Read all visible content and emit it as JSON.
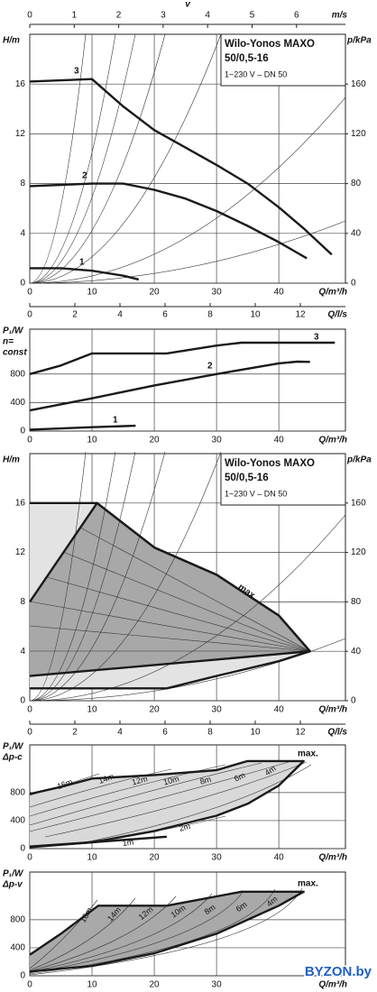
{
  "chart_data": [
    {
      "type": "line",
      "title": [
        "Wilo-Yonos MAXO",
        "50/0,5-16"
      ],
      "subtitle": "1~230 V – DN 50",
      "xlabel": "Q/m³/h",
      "ylabel": [
        "H/m"
      ],
      "y2label": "p/kPa",
      "x2label": "v",
      "x2unit": "m/s",
      "x3label": "Q/l/s",
      "xlim": [
        0,
        50.7
      ],
      "xticks": [
        0,
        10,
        20,
        30,
        40
      ],
      "ylim": [
        0,
        20
      ],
      "yticks": [
        0,
        4,
        8,
        12,
        16
      ],
      "y2lim": [
        0,
        200
      ],
      "y2ticks": [
        0,
        40,
        80,
        120,
        160
      ],
      "x2lim": [
        0,
        7.1
      ],
      "x2ticks": [
        0,
        1,
        2,
        3,
        4,
        5,
        6
      ],
      "x3lim": [
        0,
        14
      ],
      "x3ticks": [
        0,
        2,
        4,
        6,
        8,
        10,
        12
      ],
      "grid": true,
      "series": [
        {
          "name": "1",
          "color": "#1a1a1a",
          "x": [
            0,
            5,
            10,
            15,
            17.5
          ],
          "values": [
            1.2,
            1.2,
            1.0,
            0.6,
            0.3
          ]
        },
        {
          "name": "2",
          "color": "#1a1a1a",
          "x": [
            0,
            5,
            10,
            15,
            20,
            25,
            30,
            35,
            40,
            44.5
          ],
          "values": [
            7.8,
            7.9,
            8.0,
            8.0,
            7.5,
            6.8,
            5.8,
            4.6,
            3.3,
            2.0
          ]
        },
        {
          "name": "3",
          "color": "#1a1a1a",
          "x": [
            0,
            10,
            15,
            20,
            25,
            30,
            35,
            40,
            44,
            48.5
          ],
          "values": [
            16.2,
            16.4,
            14.2,
            12.3,
            10.9,
            9.5,
            8.0,
            6.1,
            4.4,
            2.3
          ]
        }
      ]
    },
    {
      "type": "line",
      "xlabel": "Q/m³/h",
      "ylabel": [
        "P₁/W",
        "n=",
        "const"
      ],
      "xlim": [
        0,
        50.7
      ],
      "xticks": [
        0,
        10,
        20,
        30,
        40
      ],
      "ylim": [
        0,
        1430
      ],
      "yticks": [
        0,
        400,
        800
      ],
      "grid": true,
      "series": [
        {
          "name": "1",
          "color": "#1a1a1a",
          "x": [
            0,
            10,
            17
          ],
          "values": [
            20,
            55,
            75
          ]
        },
        {
          "name": "2",
          "color": "#1a1a1a",
          "x": [
            0,
            10,
            20,
            30,
            40,
            43,
            45
          ],
          "values": [
            290,
            460,
            640,
            800,
            950,
            975,
            970
          ]
        },
        {
          "name": "3",
          "color": "#1a1a1a",
          "x": [
            0,
            5,
            10,
            22,
            30,
            34,
            49
          ],
          "values": [
            800,
            920,
            1090,
            1090,
            1200,
            1240,
            1240
          ]
        }
      ]
    },
    {
      "type": "line",
      "title": [
        "Wilo-Yonos MAXO",
        "50/0,5-16"
      ],
      "subtitle": "1~230 V – DN 50",
      "xlabel": "Q/m³/h",
      "ylabel": [
        "H/m"
      ],
      "y2label": "p/kPa",
      "x3label": "Q/l/s",
      "xlim": [
        0,
        50.7
      ],
      "xticks": [
        0,
        10,
        20,
        30,
        40
      ],
      "ylim": [
        0,
        20
      ],
      "yticks": [
        0,
        4,
        8,
        12,
        16
      ],
      "y2lim": [
        0,
        200
      ],
      "y2ticks": [
        0,
        40,
        80,
        120,
        160
      ],
      "x3lim": [
        0,
        14
      ],
      "x3ticks": [
        0,
        2,
        4,
        6,
        8,
        10,
        12
      ],
      "grid": true,
      "series": [
        {
          "color": "#1a1a1a",
          "fill": "#e3e3e3",
          "x": [
            0,
            10.8,
            20,
            30,
            40,
            45,
            40,
            30,
            22,
            0
          ],
          "values": [
            16,
            16,
            12.4,
            10.2,
            6.9,
            4,
            3.2,
            2,
            1,
            1
          ]
        },
        {
          "name": "max.",
          "color": "#1a1a1a",
          "fill": "#a8a8a8",
          "x": [
            0,
            10.8,
            20,
            30,
            40,
            45,
            0
          ],
          "values": [
            8,
            16,
            12.4,
            10.2,
            6.9,
            4,
            2
          ]
        }
      ]
    },
    {
      "type": "line",
      "xlabel": "Q/m³/h",
      "ylabel": [
        "P₁/W",
        "Δp-c"
      ],
      "xlim": [
        0,
        50.7
      ],
      "xticks": [
        0,
        10,
        20,
        30,
        40
      ],
      "ylim": [
        0,
        1480
      ],
      "yticks": [
        0,
        400,
        800
      ],
      "grid": true,
      "contour_labels": [
        "16m",
        "14m",
        "12m",
        "10m",
        "8m",
        "6m",
        "4m",
        "2m",
        "1m"
      ],
      "series": [
        {
          "name": "max.",
          "color": "#1a1a1a",
          "fill": "#d9d9d9",
          "x": [
            0,
            5,
            10,
            20,
            30,
            35,
            44,
            40,
            35,
            30,
            25,
            20,
            10,
            0
          ],
          "values": [
            780,
            880,
            1000,
            1050,
            1120,
            1250,
            1250,
            900,
            640,
            470,
            360,
            250,
            90,
            20
          ]
        },
        {
          "color": "#1a1a1a",
          "x": [
            0,
            10,
            22
          ],
          "values": [
            30,
            90,
            170
          ]
        }
      ]
    },
    {
      "type": "line",
      "xlabel": "Q/m³/h",
      "ylabel": [
        "P₁/W",
        "Δp-v"
      ],
      "xlim": [
        0,
        50.7
      ],
      "xticks": [
        0,
        10,
        20,
        30
      ],
      "ylim": [
        0,
        1480
      ],
      "yticks": [
        0,
        400,
        800
      ],
      "grid": true,
      "contour_labels": [
        "16m",
        "14m",
        "12m",
        "10m",
        "8m",
        "6m",
        "4m"
      ],
      "series": [
        {
          "name": "max.",
          "color": "#1a1a1a",
          "fill": "#a9a9a9",
          "x": [
            0,
            5,
            11,
            22,
            34,
            44,
            40,
            30,
            20,
            10,
            0
          ],
          "values": [
            300,
            600,
            1000,
            1000,
            1200,
            1200,
            1000,
            600,
            320,
            140,
            60
          ]
        }
      ]
    }
  ],
  "watermark": "BYZON.by"
}
